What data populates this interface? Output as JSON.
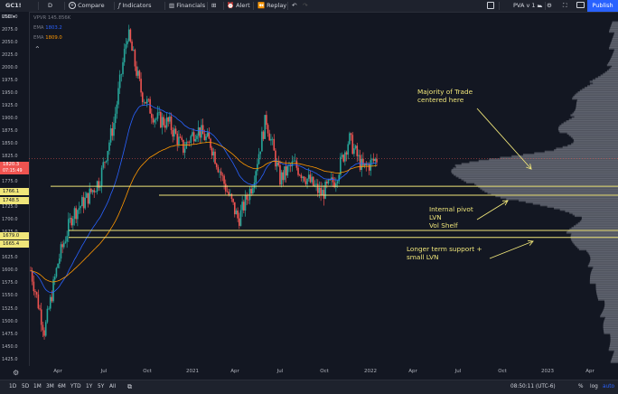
{
  "toolbar": {
    "symbol": "GC1!",
    "interval": "D",
    "compare": "Compare",
    "indicators": "Indicators",
    "financials": "Financials",
    "alert": "Alert",
    "replay": "Replay",
    "layout": "PVA v 1",
    "publish": "Publish"
  },
  "legend": {
    "vpvr_label": "VPVR",
    "vpvr_value": "145.856K",
    "ema1_label": "EMA",
    "ema1_value": "1803.2",
    "ema1_color": "#2962ff",
    "ema2_label": "EMA",
    "ema2_value": "1809.0",
    "ema2_color": "#ff9800",
    "currency": "USD"
  },
  "price_axis": {
    "ticks": [
      "2100.0",
      "2075.0",
      "2050.0",
      "2025.0",
      "2000.0",
      "1975.0",
      "1950.0",
      "1925.0",
      "1900.0",
      "1875.0",
      "1850.0",
      "1825.0",
      "1775.0",
      "1750.0",
      "1725.0",
      "1700.0",
      "1675.0",
      "1650.0",
      "1625.0",
      "1600.0",
      "1575.0",
      "1550.0",
      "1525.0",
      "1500.0",
      "1475.0",
      "1450.0",
      "1425.0"
    ],
    "last_price": "1820.3",
    "countdown": "07:15:49",
    "level_tags": [
      {
        "value": "1766.1",
        "color": "#f0e67a"
      },
      {
        "value": "1748.5",
        "color": "#f0e67a"
      },
      {
        "value": "1679.0",
        "color": "#f0e67a"
      },
      {
        "value": "1665.4",
        "color": "#f0e67a"
      }
    ]
  },
  "x_axis": {
    "labels": [
      "Apr",
      "Jul",
      "Oct",
      "2021",
      "Apr",
      "Jul",
      "Oct",
      "2022",
      "Apr",
      "Jul",
      "Oct",
      "2023",
      "Apr"
    ]
  },
  "annotations": {
    "majority": [
      "Majority of Trade",
      "centered here"
    ],
    "pivot": [
      "Internal pivot",
      "LVN",
      "Vol Shelf"
    ],
    "support": [
      "Longer term support +",
      "small LVN"
    ]
  },
  "bottom_bar": {
    "timeframes": [
      "1D",
      "5D",
      "1M",
      "3M",
      "6M",
      "YTD",
      "1Y",
      "5Y",
      "All"
    ],
    "clock": "08:50:11 (UTC-6)",
    "percent": "%",
    "log": "log",
    "auto": "auto"
  },
  "colors": {
    "up_candle": "#26a69a",
    "down_candle": "#ef5350",
    "level_line": "#f0e67a",
    "volume_profile": "#787b86",
    "last_price": "#ef5350"
  },
  "chart_data": {
    "type": "candlestick",
    "symbol": "GC1!",
    "interval": "D",
    "y_range": [
      1412,
      2110
    ],
    "series": [
      {
        "name": "EMA",
        "last": 1803.2,
        "color": "#2962ff"
      },
      {
        "name": "EMA",
        "last": 1809.0,
        "color": "#ff9800"
      }
    ],
    "close_path": [
      [
        "2020-02",
        1600
      ],
      [
        "2020-03",
        1480
      ],
      [
        "2020-03",
        1620
      ],
      [
        "2020-04",
        1710
      ],
      [
        "2020-05",
        1740
      ],
      [
        "2020-06",
        1780
      ],
      [
        "2020-07",
        1890
      ],
      [
        "2020-08",
        2070
      ],
      [
        "2020-08",
        1950
      ],
      [
        "2020-09",
        1900
      ],
      [
        "2020-10",
        1890
      ],
      [
        "2020-11",
        1840
      ],
      [
        "2020-12",
        1880
      ],
      [
        "2021-01",
        1850
      ],
      [
        "2021-02",
        1770
      ],
      [
        "2021-03",
        1700
      ],
      [
        "2021-04",
        1770
      ],
      [
        "2021-05",
        1900
      ],
      [
        "2021-06",
        1780
      ],
      [
        "2021-07",
        1810
      ],
      [
        "2021-08",
        1780
      ],
      [
        "2021-09",
        1750
      ],
      [
        "2021-10",
        1780
      ],
      [
        "2021-11",
        1860
      ],
      [
        "2021-12",
        1800
      ],
      [
        "2022-01",
        1820.3
      ]
    ],
    "horizontal_levels": [
      1766.1,
      1748.5,
      1679.0,
      1665.4
    ]
  }
}
